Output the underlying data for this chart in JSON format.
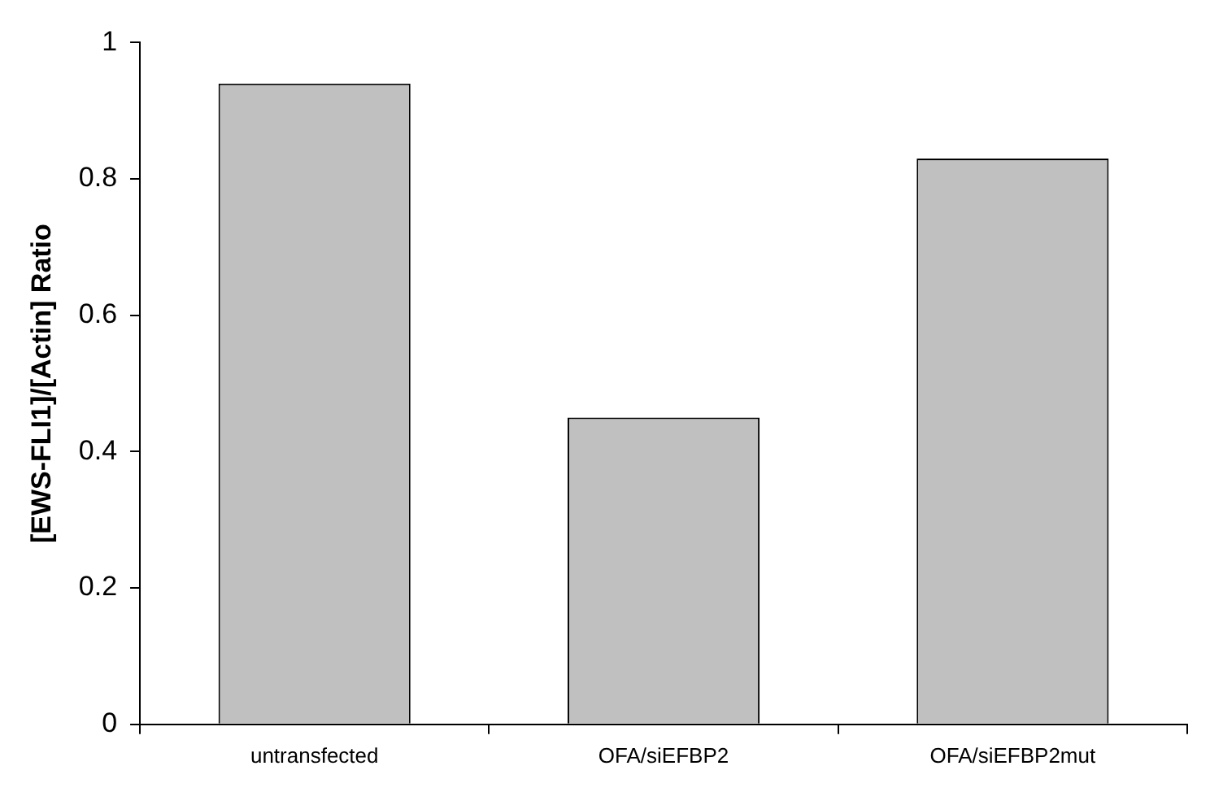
{
  "chart_data": {
    "type": "bar",
    "ylabel": "[EWS-FLI1]/[Actin] Ratio",
    "categories": [
      "untransfected",
      "OFA/siEFBP2",
      "OFA/siEFBP2mut"
    ],
    "values": [
      0.94,
      0.45,
      0.83
    ],
    "color": "#c0c0c0",
    "ylim": [
      0,
      1
    ],
    "yticks": [
      0,
      0.2,
      0.4,
      0.6,
      0.8,
      1
    ],
    "grid": false,
    "legend": false
  }
}
